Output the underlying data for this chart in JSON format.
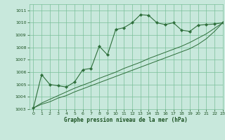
{
  "background_color": "#c8e8dc",
  "grid_color": "#7abf99",
  "line_color": "#2d6e3a",
  "marker_color": "#2d6e3a",
  "xlabel": "Graphe pression niveau de la mer (hPa)",
  "xlabel_color": "#1a5020",
  "xlim": [
    -0.5,
    23
  ],
  "ylim": [
    1003,
    1011.5
  ],
  "xticks": [
    0,
    1,
    2,
    3,
    4,
    5,
    6,
    7,
    8,
    9,
    10,
    11,
    12,
    13,
    14,
    15,
    16,
    17,
    18,
    19,
    20,
    21,
    22,
    23
  ],
  "yticks": [
    1003,
    1004,
    1005,
    1006,
    1007,
    1008,
    1009,
    1010,
    1011
  ],
  "series_main": {
    "x": [
      0,
      1,
      2,
      3,
      4,
      5,
      6,
      7,
      8,
      9,
      10,
      11,
      12,
      13,
      14,
      15,
      16,
      17,
      18,
      19,
      20,
      21,
      22,
      23
    ],
    "y": [
      1003.1,
      1005.8,
      1005.0,
      1004.9,
      1004.8,
      1005.2,
      1006.2,
      1006.3,
      1008.1,
      1007.4,
      1009.45,
      1009.6,
      1010.0,
      1010.65,
      1010.6,
      1010.0,
      1009.85,
      1010.0,
      1009.4,
      1009.3,
      1009.8,
      1009.85,
      1009.9,
      1010.0
    ]
  },
  "series_trend1": {
    "x": [
      0,
      1,
      2,
      3,
      4,
      5,
      6,
      7,
      8,
      9,
      10,
      11,
      12,
      13,
      14,
      15,
      16,
      17,
      18,
      19,
      20,
      21,
      22,
      23
    ],
    "y": [
      1003.1,
      1003.4,
      1003.6,
      1003.9,
      1004.1,
      1004.4,
      1004.65,
      1004.9,
      1005.15,
      1005.4,
      1005.65,
      1005.9,
      1006.15,
      1006.4,
      1006.65,
      1006.9,
      1007.15,
      1007.4,
      1007.65,
      1007.9,
      1008.25,
      1008.7,
      1009.3,
      1010.0
    ]
  },
  "series_trend2": {
    "x": [
      0,
      1,
      2,
      3,
      4,
      5,
      6,
      7,
      8,
      9,
      10,
      11,
      12,
      13,
      14,
      15,
      16,
      17,
      18,
      19,
      20,
      21,
      22,
      23
    ],
    "y": [
      1003.1,
      1003.5,
      1003.8,
      1004.1,
      1004.4,
      1004.7,
      1004.95,
      1005.2,
      1005.5,
      1005.75,
      1006.0,
      1006.3,
      1006.55,
      1006.8,
      1007.1,
      1007.35,
      1007.6,
      1007.85,
      1008.1,
      1008.4,
      1008.75,
      1009.1,
      1009.55,
      1010.0
    ]
  }
}
